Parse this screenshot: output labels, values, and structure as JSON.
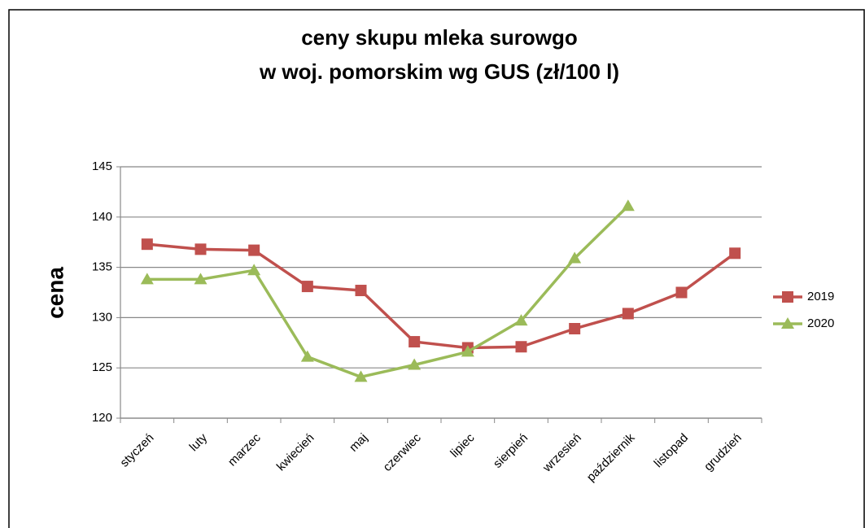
{
  "chart_data": {
    "type": "line",
    "title": [
      "ceny skupu mleka surowgo",
      "w woj. pomorskim wg GUS (zł/100 l)"
    ],
    "y_label": "cena",
    "categories": [
      "styczeń",
      "luty",
      "marzec",
      "kwiecień",
      "maj",
      "czerwiec",
      "lipiec",
      "sierpień",
      "wrzesień",
      "październik",
      "listopad",
      "grudzień"
    ],
    "series": [
      {
        "name": "2019",
        "color": "#c0504d",
        "marker": "square",
        "values": [
          137.3,
          136.8,
          136.7,
          133.1,
          132.7,
          127.6,
          127.0,
          127.1,
          128.9,
          130.4,
          132.5,
          136.4
        ]
      },
      {
        "name": "2020",
        "color": "#9bbb59",
        "marker": "triangle",
        "values": [
          133.8,
          133.8,
          134.7,
          126.1,
          124.1,
          125.3,
          126.6,
          129.7,
          135.9,
          141.1,
          null,
          null
        ]
      }
    ],
    "ylim": [
      120,
      145
    ],
    "yticks": [
      120,
      125,
      130,
      135,
      140,
      145
    ],
    "grid": true,
    "legend": "right"
  }
}
